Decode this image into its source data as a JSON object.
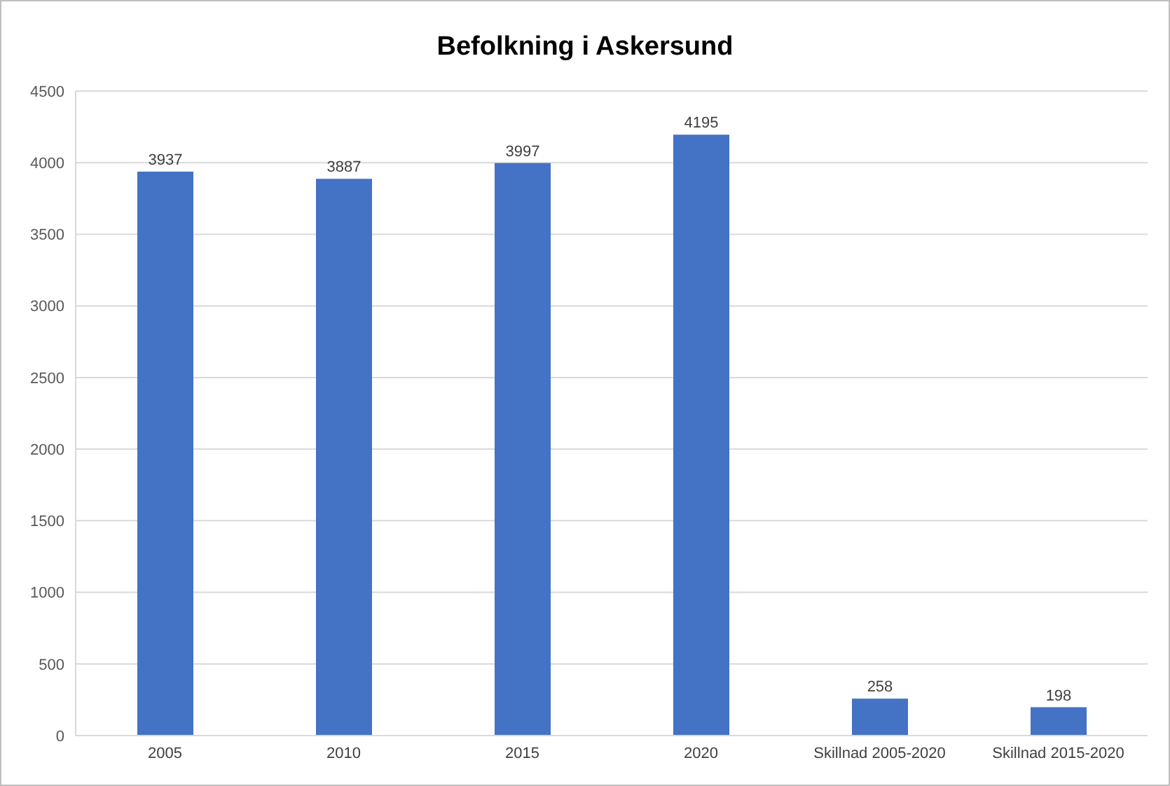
{
  "chart_data": {
    "type": "bar",
    "title": "Befolkning i Askersund",
    "categories": [
      "2005",
      "2010",
      "2015",
      "2020",
      "Skillnad 2005-2020",
      "Skillnad 2015-2020"
    ],
    "values": [
      3937,
      3887,
      3997,
      4195,
      258,
      198
    ],
    "color": "#4472c4",
    "ylim": [
      0,
      4500
    ],
    "yticks": [
      0,
      500,
      1000,
      1500,
      2000,
      2500,
      3000,
      3500,
      4000,
      4500
    ],
    "grid": "y",
    "data_labels": true
  }
}
